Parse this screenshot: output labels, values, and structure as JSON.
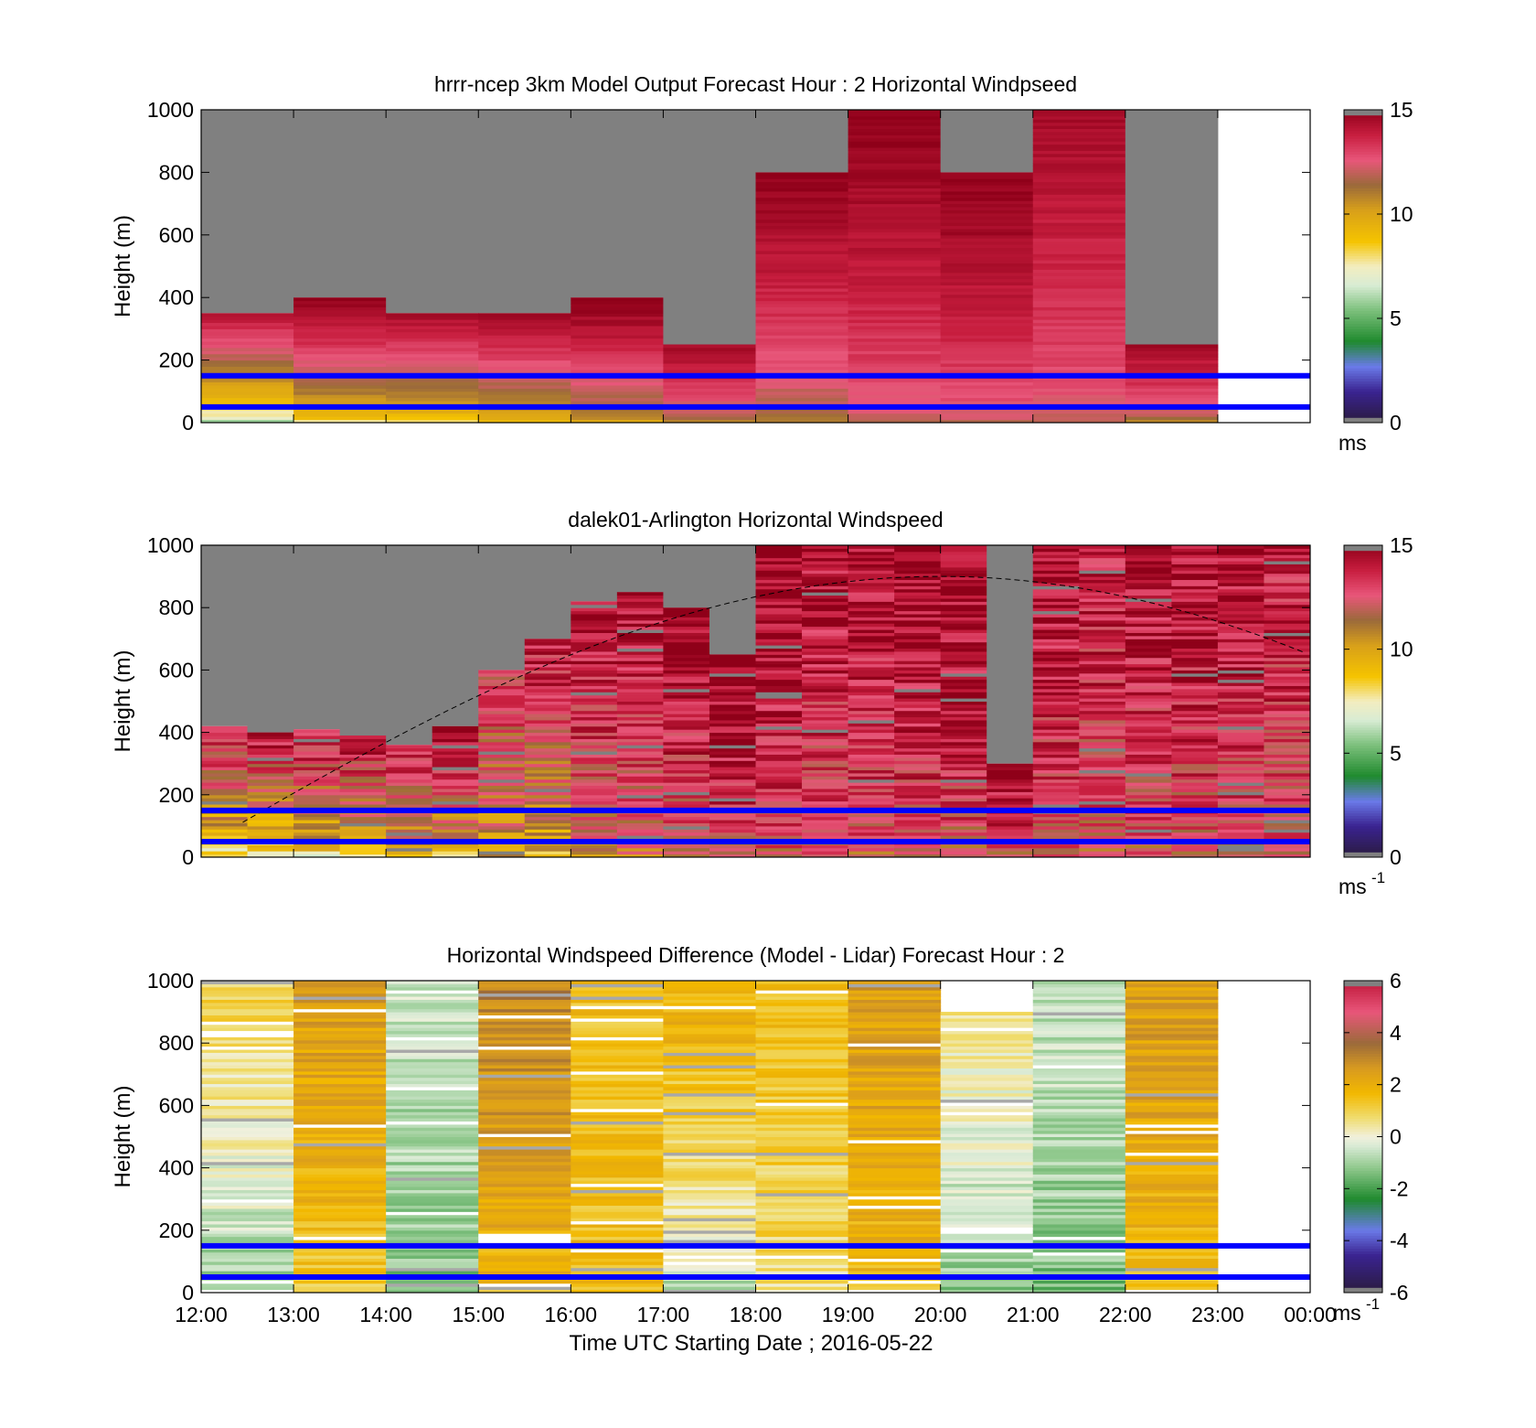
{
  "figure": {
    "x_ticks": [
      "12:00",
      "13:00",
      "14:00",
      "15:00",
      "16:00",
      "17:00",
      "18:00",
      "19:00",
      "20:00",
      "21:00",
      "22:00",
      "23:00",
      "00:00"
    ],
    "x_label": "Time UTC  Starting Date ; 2016-05-22",
    "y_label": "Height (m)",
    "y_ticks": [
      "0",
      "200",
      "400",
      "600",
      "800",
      "1000"
    ],
    "reference_line_color": "#0000ff",
    "nodata_color": "#808080"
  },
  "chart_data": [
    {
      "type": "heatmap",
      "title": "hrrr-ncep 3km Model Output   Forecast Hour : 2 Horizontal Windpseed",
      "x_range_hours": [
        12,
        24
      ],
      "ylim": [
        0,
        1000
      ],
      "reference_lines_m": [
        150,
        50
      ],
      "colorbar": {
        "min": 0,
        "max": 15,
        "ticks": [
          "0",
          "5",
          "10",
          "15"
        ],
        "unit": "ms"
      },
      "columns": [
        {
          "time": "12:00",
          "top_m": 350,
          "bottom": 6,
          "top": 14
        },
        {
          "time": "13:00",
          "top_m": 400,
          "bottom": 8,
          "top": 15
        },
        {
          "time": "14:00",
          "top_m": 350,
          "bottom": 8,
          "top": 14.5
        },
        {
          "time": "15:00",
          "top_m": 350,
          "bottom": 9,
          "top": 14.5
        },
        {
          "time": "16:00",
          "top_m": 400,
          "bottom": 10,
          "top": 15
        },
        {
          "time": "17:00",
          "top_m": 250,
          "bottom": 11,
          "top": 14.5
        },
        {
          "time": "18:00",
          "top_m": 800,
          "bottom": 11,
          "top": 15
        },
        {
          "time": "19:00",
          "top_m": 1000,
          "bottom": 12,
          "top": 15
        },
        {
          "time": "20:00",
          "top_m": 800,
          "bottom": 12,
          "top": 15
        },
        {
          "time": "21:00",
          "top_m": 1000,
          "bottom": 12,
          "top": 14.5
        },
        {
          "time": "22:00",
          "top_m": 250,
          "bottom": 11,
          "top": 14.5
        }
      ]
    },
    {
      "type": "heatmap",
      "title": "dalek01-Arlington  Horizontal Windspeed",
      "x_range_hours": [
        12,
        24
      ],
      "ylim": [
        0,
        1000
      ],
      "reference_lines_m": [
        150,
        50
      ],
      "colorbar": {
        "min": 0,
        "max": 15,
        "ticks": [
          "0",
          "5",
          "10",
          "15"
        ],
        "unit": "ms",
        "unit_exp": "-1"
      },
      "curve": {
        "peak_time_h": 20.0,
        "peak_m": 900
      },
      "columns": [
        {
          "time_h": 12.0,
          "top_m": 420,
          "bottom": 7,
          "top": 14
        },
        {
          "time_h": 12.5,
          "top_m": 400,
          "bottom": 7,
          "top": 14
        },
        {
          "time_h": 13.0,
          "top_m": 410,
          "bottom": 8,
          "top": 14
        },
        {
          "time_h": 13.5,
          "top_m": 390,
          "bottom": 8,
          "top": 14
        },
        {
          "time_h": 14.0,
          "top_m": 360,
          "bottom": 9,
          "top": 14
        },
        {
          "time_h": 14.5,
          "top_m": 420,
          "bottom": 9,
          "top": 14
        },
        {
          "time_h": 15.0,
          "top_m": 600,
          "bottom": 10,
          "top": 13
        },
        {
          "time_h": 15.5,
          "top_m": 700,
          "bottom": 9,
          "top": 14
        },
        {
          "time_h": 16.0,
          "top_m": 820,
          "bottom": 11,
          "top": 14.5
        },
        {
          "time_h": 16.5,
          "top_m": 850,
          "bottom": 11,
          "top": 14.5
        },
        {
          "time_h": 17.0,
          "top_m": 800,
          "bottom": 12,
          "top": 14.5
        },
        {
          "time_h": 17.5,
          "top_m": 650,
          "bottom": 12,
          "top": 15
        },
        {
          "time_h": 18.0,
          "top_m": 1000,
          "bottom": 12,
          "top": 15
        },
        {
          "time_h": 18.5,
          "top_m": 1000,
          "bottom": 12,
          "top": 14.5
        },
        {
          "time_h": 19.0,
          "top_m": 1000,
          "bottom": 12,
          "top": 14.5
        },
        {
          "time_h": 19.5,
          "top_m": 1000,
          "bottom": 12,
          "top": 15
        },
        {
          "time_h": 20.0,
          "top_m": 1000,
          "bottom": 12,
          "top": 15
        },
        {
          "time_h": 20.5,
          "top_m": 300,
          "bottom": 12,
          "top": 14.5
        },
        {
          "time_h": 21.0,
          "top_m": 1000,
          "bottom": 12,
          "top": 14.5
        },
        {
          "time_h": 21.5,
          "top_m": 1000,
          "bottom": 12,
          "top": 14
        },
        {
          "time_h": 22.0,
          "top_m": 1000,
          "bottom": 12,
          "top": 14.5
        },
        {
          "time_h": 22.5,
          "top_m": 1000,
          "bottom": 12,
          "top": 14.5
        },
        {
          "time_h": 23.0,
          "top_m": 1000,
          "bottom": 12,
          "top": 14.5
        },
        {
          "time_h": 23.5,
          "top_m": 1000,
          "bottom": 12,
          "top": 14
        }
      ]
    },
    {
      "type": "heatmap",
      "title": "Horizontal Windspeed Difference (Model - Lidar) Forecast Hour : 2",
      "x_range_hours": [
        12,
        24
      ],
      "ylim": [
        0,
        1000
      ],
      "reference_lines_m": [
        150,
        50
      ],
      "colorbar": {
        "min": -6,
        "max": 6,
        "ticks": [
          "-6",
          "-4",
          "-2",
          "0",
          "2",
          "4",
          "6"
        ],
        "unit": "ms",
        "unit_exp": "-1"
      },
      "columns": [
        {
          "time": "12:00",
          "top_m": 1000,
          "bottom": -1.5,
          "top": 1.0
        },
        {
          "time": "13:00",
          "top_m": 1000,
          "bottom": 1.0,
          "top": 2.5
        },
        {
          "time": "14:00",
          "top_m": 1000,
          "bottom": -1.5,
          "top": -0.5
        },
        {
          "time": "15:00",
          "top_m": 1000,
          "bottom": 1.5,
          "top": 3.0
        },
        {
          "time": "16:00",
          "top_m": 1000,
          "bottom": 1.5,
          "top": 1.5
        },
        {
          "time": "17:00",
          "top_m": 1000,
          "bottom": -1.0,
          "top": 2.0
        },
        {
          "time": "18:00",
          "top_m": 1000,
          "bottom": 0.5,
          "top": 1.5
        },
        {
          "time": "19:00",
          "top_m": 1000,
          "bottom": 1.5,
          "top": 2.5
        },
        {
          "time": "20:00",
          "top_m": 900,
          "bottom": -1.5,
          "top": 0.5
        },
        {
          "time": "21:00",
          "top_m": 1000,
          "bottom": -1.5,
          "top": -0.5
        },
        {
          "time": "22:00",
          "top_m": 1000,
          "bottom": 1.5,
          "top": 2.5
        }
      ]
    }
  ]
}
